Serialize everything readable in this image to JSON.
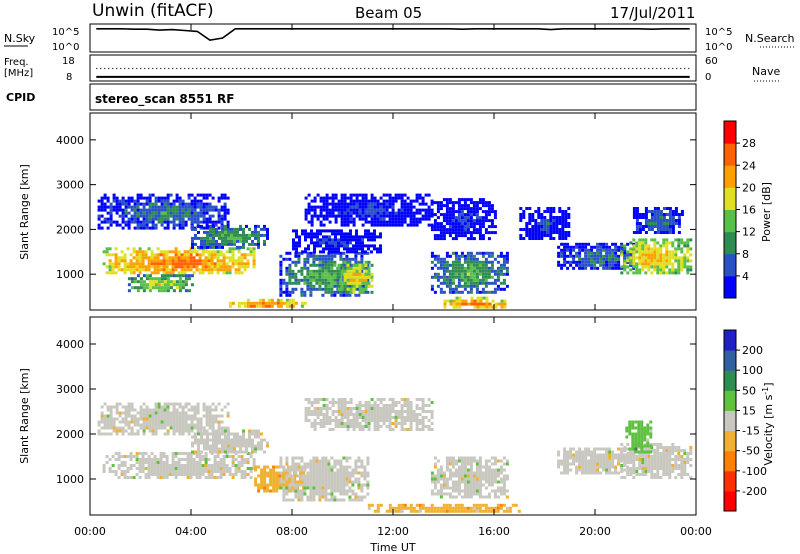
{
  "header": {
    "station": "Unwin (fitACF)",
    "beam": "Beam 05",
    "date": "17/Jul/2011"
  },
  "chart_data": [
    {
      "type": "line",
      "panel": "noise",
      "left_label": "N.Sky",
      "right_label": "N.Search",
      "left_ticks": [
        "10^5",
        "10^0"
      ],
      "right_ticks": [
        "10^5",
        "10^0"
      ],
      "series": [
        {
          "values_log10": [
            4.6,
            4.6,
            4.6,
            4.5,
            4.5,
            4.3,
            4.4,
            4.2,
            4.0,
            2.0,
            2.5,
            4.6,
            4.6,
            4.6,
            4.6,
            4.6,
            4.6,
            4.6,
            4.6,
            4.6,
            4.6,
            4.6,
            4.6,
            4.6,
            4.6,
            4.6,
            4.6,
            4.6,
            4.6,
            4.5,
            4.6,
            4.6,
            4.6,
            4.6,
            4.6,
            4.6,
            4.4,
            4.6,
            4.6,
            4.6,
            4.6,
            4.6,
            4.6,
            4.6,
            4.5,
            4.6,
            4.6,
            4.6
          ]
        }
      ]
    },
    {
      "type": "line",
      "panel": "frequency",
      "left_label": "Freq.",
      "left_unit": "[MHz]",
      "right_label": "Nave",
      "left_ticks": [
        "18",
        "8"
      ],
      "right_ticks": [
        "60",
        "0"
      ],
      "series": [
        {
          "values": [
            9,
            9,
            9,
            9,
            9,
            9,
            9,
            9,
            9,
            9,
            9,
            9,
            9,
            9,
            9,
            9,
            9,
            9,
            9,
            9,
            9,
            9,
            9,
            9,
            9,
            9,
            9,
            9,
            9,
            9,
            9,
            9,
            9,
            9,
            9,
            9,
            9,
            9,
            9,
            9,
            9,
            9,
            9,
            9,
            9,
            9,
            9,
            9
          ]
        },
        {
          "values": [
            30,
            30,
            30,
            30,
            30,
            30,
            30,
            30,
            30,
            30,
            30,
            30,
            30,
            30,
            30,
            30,
            30,
            30,
            30,
            30,
            30,
            30,
            30,
            30,
            30,
            30,
            30,
            30,
            30,
            30,
            30,
            30,
            30,
            30,
            30,
            30,
            30,
            30,
            30,
            30,
            30,
            30,
            30,
            30,
            30,
            30,
            30,
            30
          ]
        }
      ]
    },
    {
      "type": "table",
      "panel": "cpid",
      "label": "CPID",
      "value": "stereo_scan 8551 RF"
    },
    {
      "type": "heatmap",
      "panel": "power",
      "ylabel": "Slant Range [km]",
      "ylim": [
        200,
        4600
      ],
      "yticks": [
        "1000",
        "2000",
        "3000",
        "4000"
      ],
      "colorbar_label": "Power [dB]",
      "colorbar_ticks": [
        "4",
        "8",
        "12",
        "16",
        "20",
        "24",
        "28"
      ],
      "colors": [
        "#0000ff",
        "#2850c8",
        "#2e8c50",
        "#58c048",
        "#e0e020",
        "#ffa000",
        "#ff6000",
        "#ff0000"
      ],
      "patches": [
        {
          "x": [
            0.5,
            6.5
          ],
          "range": [
            1000,
            1600
          ],
          "level": 6
        },
        {
          "x": [
            0.3,
            5.5
          ],
          "range": [
            2000,
            2800
          ],
          "level": 2
        },
        {
          "x": [
            1.5,
            4.0
          ],
          "range": [
            600,
            1000
          ],
          "level": 4
        },
        {
          "x": [
            4.0,
            7.0
          ],
          "range": [
            1600,
            2100
          ],
          "level": 3
        },
        {
          "x": [
            5.5,
            8.5
          ],
          "range": [
            250,
            450
          ],
          "level": 6
        },
        {
          "x": [
            7.5,
            11.0
          ],
          "range": [
            500,
            1500
          ],
          "level": 3
        },
        {
          "x": [
            8.0,
            11.5
          ],
          "range": [
            1500,
            2000
          ],
          "level": 1
        },
        {
          "x": [
            8.5,
            13.5
          ],
          "range": [
            2100,
            2800
          ],
          "level": 1
        },
        {
          "x": [
            9.8,
            11.2
          ],
          "range": [
            600,
            1300
          ],
          "level": 5
        },
        {
          "x": [
            13.5,
            16.5
          ],
          "range": [
            600,
            1500
          ],
          "level": 3
        },
        {
          "x": [
            13.5,
            16.0
          ],
          "range": [
            1800,
            2700
          ],
          "level": 1
        },
        {
          "x": [
            14.0,
            16.5
          ],
          "range": [
            250,
            500
          ],
          "level": 6
        },
        {
          "x": [
            17.0,
            19.0
          ],
          "range": [
            1800,
            2500
          ],
          "level": 1
        },
        {
          "x": [
            18.5,
            21.5
          ],
          "range": [
            1100,
            1700
          ],
          "level": 2
        },
        {
          "x": [
            21.0,
            23.8
          ],
          "range": [
            1000,
            1800
          ],
          "level": 5
        },
        {
          "x": [
            21.5,
            23.5
          ],
          "range": [
            1900,
            2500
          ],
          "level": 2
        }
      ]
    },
    {
      "type": "heatmap",
      "panel": "velocity",
      "ylabel": "Slant Range [km]",
      "ylim": [
        200,
        4600
      ],
      "yticks": [
        "1000",
        "2000",
        "3000",
        "4000"
      ],
      "xlabel": "Time UT",
      "xlim": [
        0,
        24
      ],
      "xticks": [
        "00:00",
        "04:00",
        "08:00",
        "12:00",
        "16:00",
        "20:00",
        "00:00"
      ],
      "colorbar_label": "Velocity [m s",
      "colorbar_label_sup": "-1",
      "colorbar_label_end": "]",
      "colorbar_ticks": [
        "200",
        "100",
        "50",
        "15",
        "-15",
        "-50",
        "-100",
        "-200"
      ],
      "colors": [
        "#2020c8",
        "#3060a0",
        "#2e8c50",
        "#60c040",
        "#c8c8c0",
        "#f0b030",
        "#ff8000",
        "#ff3000",
        "#ff0000"
      ],
      "patches": [
        {
          "x": [
            0.5,
            6.5
          ],
          "range": [
            1000,
            1600
          ],
          "level": 4
        },
        {
          "x": [
            0.3,
            5.5
          ],
          "range": [
            2000,
            2700
          ],
          "level": 4
        },
        {
          "x": [
            4.0,
            7.0
          ],
          "range": [
            1600,
            2100
          ],
          "level": 4
        },
        {
          "x": [
            6.5,
            8.5
          ],
          "range": [
            700,
            1300
          ],
          "level": 5
        },
        {
          "x": [
            7.5,
            11.0
          ],
          "range": [
            500,
            1500
          ],
          "level": 4
        },
        {
          "x": [
            8.5,
            13.5
          ],
          "range": [
            2100,
            2800
          ],
          "level": 4
        },
        {
          "x": [
            11.0,
            17.0
          ],
          "range": [
            250,
            450
          ],
          "level": 5
        },
        {
          "x": [
            13.5,
            16.5
          ],
          "range": [
            600,
            1500
          ],
          "level": 4
        },
        {
          "x": [
            18.5,
            21.5
          ],
          "range": [
            1100,
            1700
          ],
          "level": 4
        },
        {
          "x": [
            21.0,
            23.8
          ],
          "range": [
            1000,
            1800
          ],
          "level": 4
        },
        {
          "x": [
            21.2,
            22.2
          ],
          "range": [
            1600,
            2300
          ],
          "level": 3
        }
      ]
    }
  ]
}
